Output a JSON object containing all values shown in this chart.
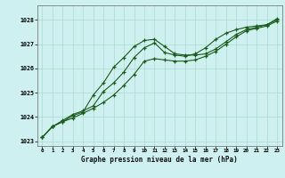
{
  "title": "Graphe pression niveau de la mer (hPa)",
  "background_color": "#cff0f0",
  "grid_color": "#aaddcc",
  "line_color": "#1a5c1a",
  "marker_color": "#1a5c1a",
  "xlim": [
    -0.5,
    23.5
  ],
  "ylim": [
    1022.8,
    1028.6
  ],
  "yticks": [
    1023,
    1024,
    1025,
    1026,
    1027,
    1028
  ],
  "xticks": [
    0,
    1,
    2,
    3,
    4,
    5,
    6,
    7,
    8,
    9,
    10,
    11,
    12,
    13,
    14,
    15,
    16,
    17,
    18,
    19,
    20,
    21,
    22,
    23
  ],
  "series1_x": [
    0,
    1,
    2,
    3,
    4,
    5,
    6,
    7,
    8,
    9,
    10,
    11,
    12,
    13,
    14,
    15,
    16,
    17,
    18,
    19,
    20,
    21,
    22,
    23
  ],
  "series1_y": [
    1023.15,
    1023.6,
    1023.8,
    1023.95,
    1024.15,
    1024.35,
    1024.6,
    1024.9,
    1025.3,
    1025.75,
    1026.3,
    1026.4,
    1026.35,
    1026.3,
    1026.3,
    1026.35,
    1026.5,
    1026.7,
    1027.0,
    1027.3,
    1027.55,
    1027.65,
    1027.75,
    1027.95
  ],
  "series2_x": [
    0,
    1,
    2,
    3,
    4,
    5,
    6,
    7,
    8,
    9,
    10,
    11,
    12,
    13,
    14,
    15,
    16,
    17,
    18,
    19,
    20,
    21,
    22,
    23
  ],
  "series2_y": [
    1023.15,
    1023.6,
    1023.8,
    1024.05,
    1024.2,
    1024.9,
    1025.4,
    1026.05,
    1026.45,
    1026.9,
    1027.15,
    1027.2,
    1026.9,
    1026.6,
    1026.55,
    1026.55,
    1026.6,
    1026.8,
    1027.1,
    1027.4,
    1027.6,
    1027.7,
    1027.8,
    1028.05
  ],
  "series3_x": [
    0,
    1,
    2,
    3,
    4,
    5,
    6,
    7,
    8,
    9,
    10,
    11,
    12,
    13,
    14,
    15,
    16,
    17,
    18,
    19,
    20,
    21,
    22,
    23
  ],
  "series3_y": [
    1023.15,
    1023.6,
    1023.85,
    1024.1,
    1024.25,
    1024.45,
    1025.05,
    1025.4,
    1025.85,
    1026.45,
    1026.85,
    1027.05,
    1026.65,
    1026.55,
    1026.5,
    1026.6,
    1026.85,
    1027.2,
    1027.45,
    1027.6,
    1027.7,
    1027.75,
    1027.8,
    1028.0
  ]
}
